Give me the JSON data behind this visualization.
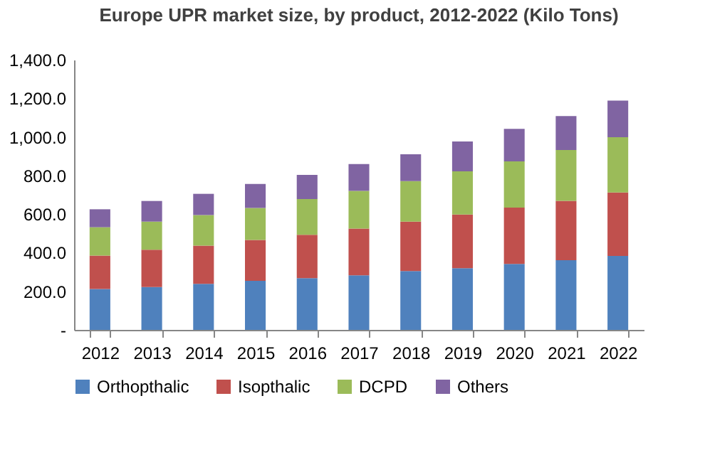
{
  "chart_data": {
    "type": "bar",
    "stacked": true,
    "title": "Europe UPR market size, by product, 2012-2022 (Kilo Tons)",
    "categories": [
      "2012",
      "2013",
      "2014",
      "2015",
      "2016",
      "2017",
      "2018",
      "2019",
      "2020",
      "2021",
      "2022"
    ],
    "series": [
      {
        "name": "Orthopthalic",
        "color": "#4f81bd",
        "values": [
          212,
          222,
          239,
          254,
          268,
          283,
          305,
          320,
          342,
          361,
          383
        ]
      },
      {
        "name": "Isopthalic",
        "color": "#c0504d",
        "values": [
          173,
          193,
          198,
          212,
          225,
          242,
          256,
          278,
          292,
          308,
          329
        ]
      },
      {
        "name": "DCPD",
        "color": "#9bbb59",
        "values": [
          147,
          146,
          158,
          166,
          185,
          195,
          210,
          224,
          239,
          263,
          286
        ]
      },
      {
        "name": "Others",
        "color": "#8064a2",
        "values": [
          93,
          107,
          110,
          124,
          125,
          139,
          139,
          154,
          169,
          176,
          190
        ]
      }
    ],
    "ylim": [
      0,
      1400
    ],
    "yticks": [
      {
        "value": 0,
        "label": "-"
      },
      {
        "value": 200,
        "label": "200.0"
      },
      {
        "value": 400,
        "label": "400.0"
      },
      {
        "value": 600,
        "label": "600.0"
      },
      {
        "value": 800,
        "label": "800.0"
      },
      {
        "value": 1000,
        "label": "1,000.0"
      },
      {
        "value": 1200,
        "label": "1,200.0"
      },
      {
        "value": 1400,
        "label": "1,400.0"
      }
    ],
    "legend": "bottom",
    "grid": false
  }
}
